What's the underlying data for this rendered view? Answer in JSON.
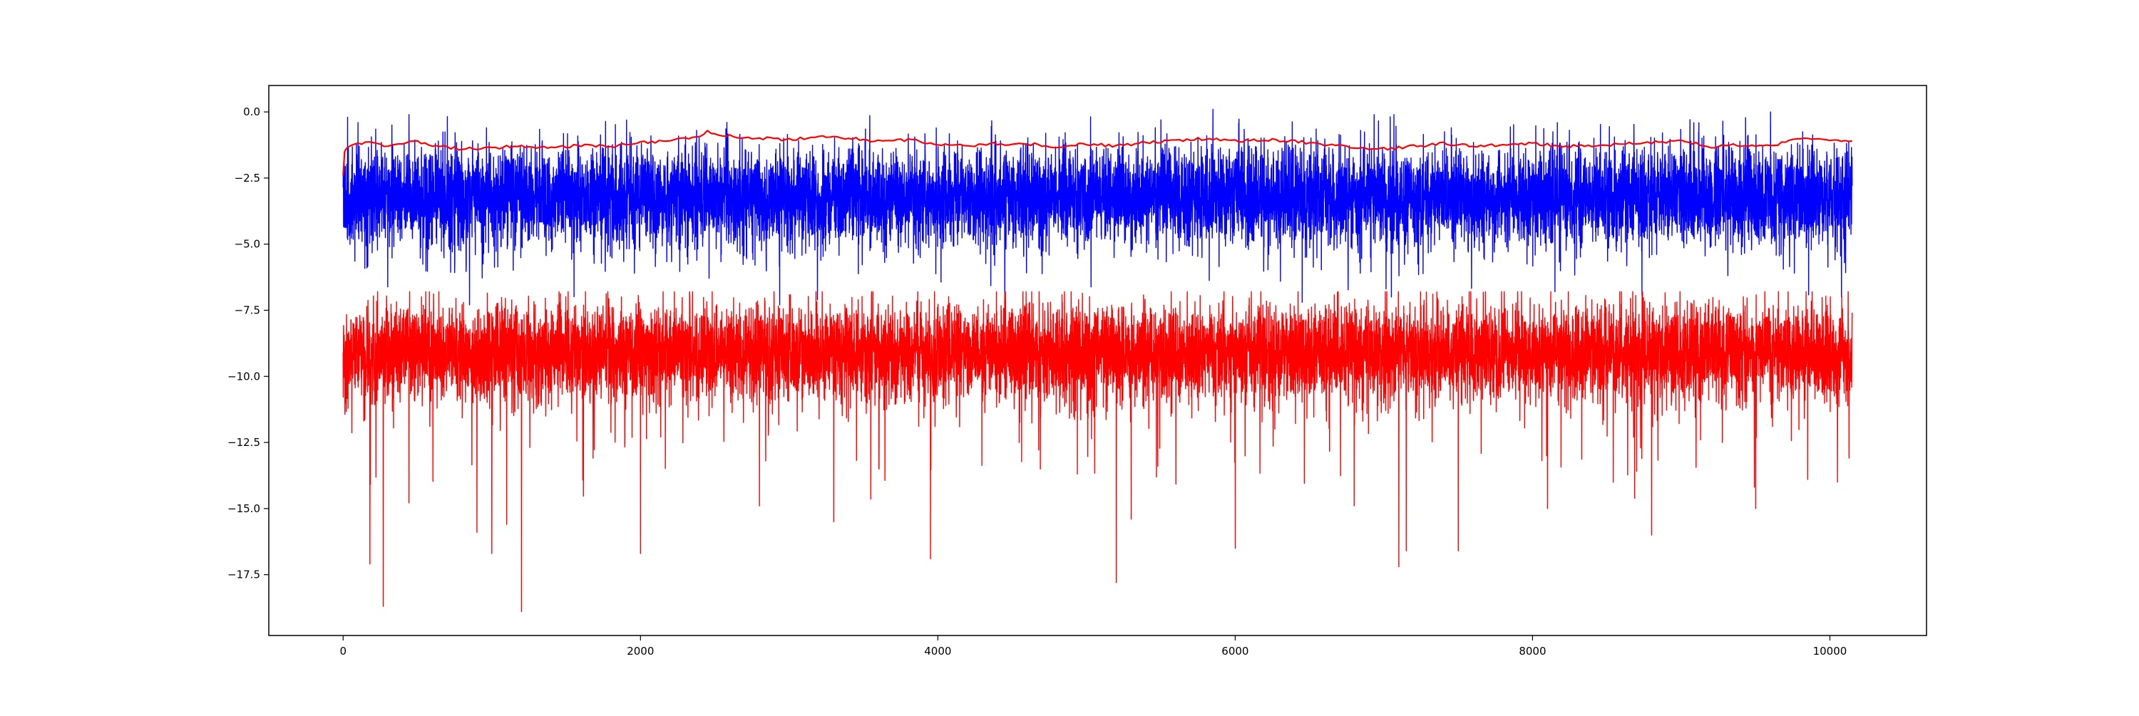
{
  "chart_data": {
    "type": "line",
    "title": "",
    "xlabel": "",
    "ylabel": "",
    "xlim": [
      -500,
      10650
    ],
    "ylim": [
      -19.8,
      1.0
    ],
    "grid": false,
    "legend": false,
    "x_ticks": [
      0,
      2000,
      4000,
      6000,
      8000,
      10000
    ],
    "x_tick_labels": [
      "0",
      "2000",
      "4000",
      "6000",
      "8000",
      "10000"
    ],
    "y_ticks": [
      0.0,
      -2.5,
      -5.0,
      -7.5,
      -10.0,
      -12.5,
      -15.0,
      -17.5
    ],
    "y_tick_labels": [
      "0.0",
      "−2.5",
      "−5.0",
      "−7.5",
      "−10.0",
      "−12.5",
      "−15.0",
      "−17.5"
    ],
    "n_points": 10150,
    "series": [
      {
        "color": "#0000ff",
        "style": "noisy",
        "x_range": [
          0,
          10150
        ],
        "mean": -3.2,
        "typical_range": [
          -5.0,
          -1.2
        ],
        "max": 0.1,
        "min": -7.6,
        "notable_extremes": [
          {
            "x": 5850,
            "y": 0.1
          },
          {
            "x": 9600,
            "y": 0.0
          },
          {
            "x": 5500,
            "y": -0.3
          },
          {
            "x": 30,
            "y": -0.2
          },
          {
            "x": 100,
            "y": -0.4
          },
          {
            "x": 4450,
            "y": -7.0
          },
          {
            "x": 6450,
            "y": -7.2
          },
          {
            "x": 7050,
            "y": -7.0
          },
          {
            "x": 8150,
            "y": -6.8
          },
          {
            "x": 850,
            "y": -7.3
          },
          {
            "x": 160,
            "y": -5.9
          }
        ]
      },
      {
        "color": "#ff0000",
        "style": "noisy",
        "x_range": [
          0,
          10150
        ],
        "mean": -9.1,
        "typical_range": [
          -11.0,
          -7.6
        ],
        "max": -6.6,
        "min": -18.9,
        "notable_extremes": [
          {
            "x": 1200,
            "y": -18.9
          },
          {
            "x": 270,
            "y": -18.7
          },
          {
            "x": 5200,
            "y": -17.8
          },
          {
            "x": 7100,
            "y": -17.2
          },
          {
            "x": 180,
            "y": -17.1
          },
          {
            "x": 3950,
            "y": -16.9
          },
          {
            "x": 2000,
            "y": -16.7
          },
          {
            "x": 1000,
            "y": -16.7
          },
          {
            "x": 7150,
            "y": -16.6
          },
          {
            "x": 7500,
            "y": -16.6
          },
          {
            "x": 6000,
            "y": -16.5
          },
          {
            "x": 8800,
            "y": -16.0
          },
          {
            "x": 900,
            "y": -15.9
          },
          {
            "x": 1100,
            "y": -15.6
          },
          {
            "x": 5300,
            "y": -15.4
          },
          {
            "x": 3300,
            "y": -15.5
          },
          {
            "x": 9500,
            "y": -15.0
          },
          {
            "x": 8100,
            "y": -15.0
          },
          {
            "x": 2800,
            "y": -14.9
          },
          {
            "x": 6800,
            "y": -14.9
          },
          {
            "x": 10050,
            "y": -14.0
          },
          {
            "x": 9850,
            "y": -13.9
          }
        ]
      },
      {
        "color": "#ff0000",
        "style": "smooth",
        "x": [
          0,
          10,
          30,
          100,
          200,
          300,
          400,
          500,
          600,
          800,
          1000,
          1200,
          1400,
          1600,
          1800,
          2000,
          2200,
          2400,
          2450,
          2500,
          2600,
          2800,
          3000,
          3200,
          3400,
          3600,
          3800,
          4000,
          4200,
          4400,
          4600,
          4800,
          5000,
          5200,
          5400,
          5600,
          5800,
          6000,
          6200,
          6400,
          6600,
          6800,
          7000,
          7200,
          7400,
          7600,
          7800,
          8000,
          8200,
          8400,
          8600,
          8800,
          9000,
          9200,
          9400,
          9600,
          9800,
          10000,
          10150
        ],
        "values": [
          -2.4,
          -1.5,
          -1.3,
          -1.2,
          -1.1,
          -1.3,
          -1.2,
          -1.1,
          -1.25,
          -1.4,
          -1.35,
          -1.3,
          -1.35,
          -1.25,
          -1.3,
          -1.15,
          -1.1,
          -0.9,
          -0.75,
          -0.8,
          -0.9,
          -1.0,
          -1.05,
          -0.95,
          -1.0,
          -1.1,
          -1.05,
          -1.2,
          -1.3,
          -1.2,
          -1.2,
          -1.3,
          -1.2,
          -1.3,
          -1.15,
          -1.1,
          -1.0,
          -1.1,
          -1.05,
          -1.1,
          -1.25,
          -1.35,
          -1.4,
          -1.3,
          -1.2,
          -1.3,
          -1.25,
          -1.2,
          -1.3,
          -1.3,
          -1.2,
          -1.15,
          -1.1,
          -1.3,
          -1.25,
          -1.3,
          -1.0,
          -1.05,
          -1.1
        ]
      }
    ]
  }
}
